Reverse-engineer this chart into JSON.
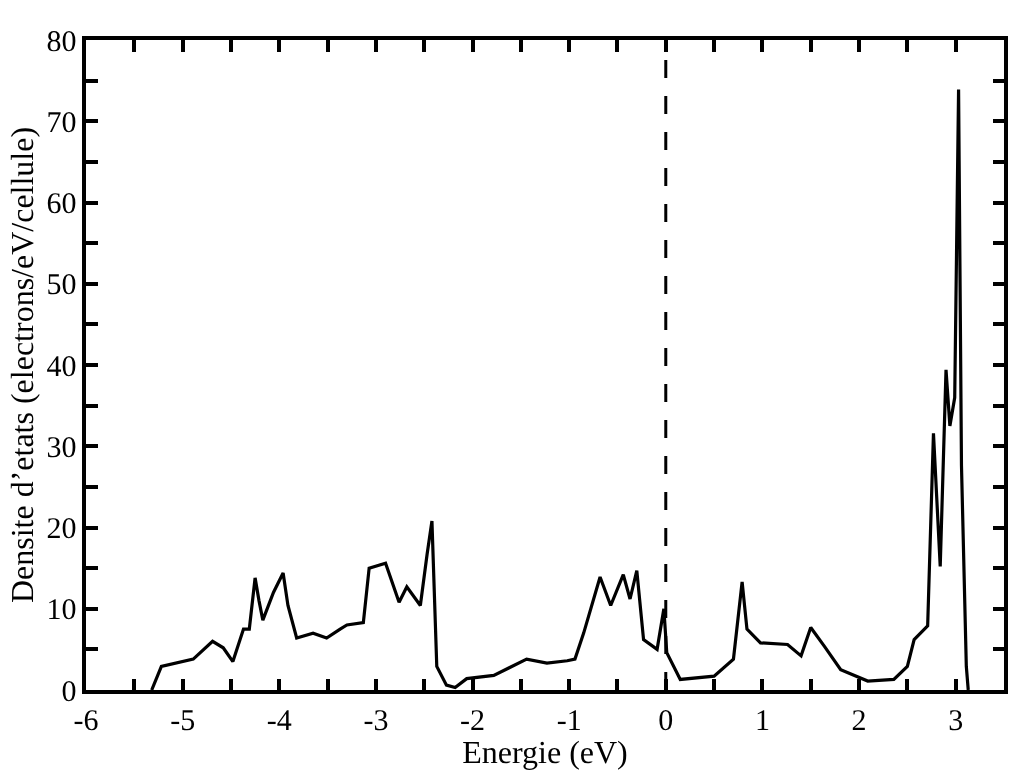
{
  "chart_data": {
    "type": "line",
    "xlabel": "Energie (eV)",
    "ylabel": "Densite d’etats (electrons/eV/cellule)",
    "x": [
      -5.32,
      -5.22,
      -4.89,
      -4.69,
      -4.58,
      -4.48,
      -4.37,
      -4.31,
      -4.25,
      -4.21,
      -4.17,
      -4.06,
      -3.96,
      -3.91,
      -3.82,
      -3.65,
      -3.51,
      -3.37,
      -3.3,
      -3.13,
      -3.07,
      -2.9,
      -2.76,
      -2.68,
      -2.54,
      -2.47,
      -2.42,
      -2.37,
      -2.27,
      -2.18,
      -2.06,
      -1.78,
      -1.44,
      -1.23,
      -1.02,
      -0.94,
      -0.85,
      -0.68,
      -0.57,
      -0.44,
      -0.37,
      -0.3,
      -0.23,
      -0.09,
      -0.02,
      0.01,
      0.15,
      0.5,
      0.7,
      0.79,
      0.84,
      0.98,
      1.26,
      1.4,
      1.5,
      1.64,
      1.81,
      2.09,
      2.36,
      2.5,
      2.57,
      2.71,
      2.77,
      2.84,
      2.9,
      2.94,
      2.99,
      3.03,
      3.06,
      3.11,
      3.13
    ],
    "series": [
      {
        "color": "#000000",
        "values": [
          0,
          2.9,
          3.8,
          6,
          5.2,
          3.5,
          7.5,
          7.5,
          13.8,
          11,
          8.6,
          12,
          14.4,
          10.4,
          6.4,
          7,
          6.4,
          7.5,
          8,
          8.3,
          15,
          15.6,
          10.8,
          12.7,
          10.4,
          16.7,
          20.8,
          2.9,
          0.6,
          0.3,
          1.4,
          1.8,
          3.8,
          3.3,
          3.6,
          3.8,
          7,
          13.9,
          10.4,
          14.2,
          11.2,
          14.7,
          6.2,
          5,
          10,
          4.6,
          1.3,
          1.7,
          3.8,
          13.3,
          7.5,
          5.8,
          5.6,
          4.2,
          7.7,
          5.4,
          2.5,
          1.1,
          1.3,
          2.9,
          6.2,
          7.9,
          31.6,
          15.2,
          39.4,
          32.5,
          36,
          73.9,
          27.6,
          2.9,
          0
        ]
      }
    ],
    "xlim": [
      -6,
      3.5
    ],
    "ylim": [
      0,
      80
    ],
    "xticks": [
      -6,
      {
        "value": -5.5,
        "label": null
      },
      -5,
      {
        "value": -4.5,
        "label": null
      },
      -4,
      {
        "value": -3.5,
        "label": null
      },
      -3,
      {
        "value": -2.5,
        "label": null
      },
      -2,
      {
        "value": -1.5,
        "label": null
      },
      -1,
      {
        "value": -0.5,
        "label": null
      },
      0,
      {
        "value": 0.5,
        "label": null
      },
      1,
      {
        "value": 1.5,
        "label": null
      },
      2,
      {
        "value": 2.5,
        "label": null
      },
      3
    ],
    "yticks": [
      0,
      {
        "value": 5,
        "label": null
      },
      10,
      {
        "value": 15,
        "label": null
      },
      20,
      {
        "value": 25,
        "label": null
      },
      30,
      {
        "value": 35,
        "label": null
      },
      40,
      {
        "value": 45,
        "label": null
      },
      50,
      {
        "value": 55,
        "label": null
      },
      60,
      {
        "value": 65,
        "label": null
      },
      70,
      {
        "value": 75,
        "label": null
      },
      80
    ],
    "ref_lines": [
      {
        "axis": "x",
        "value": 0,
        "line_style": "dashed",
        "color": "#000000"
      }
    ],
    "grid": false,
    "marker": "none",
    "line_style": "solid"
  }
}
